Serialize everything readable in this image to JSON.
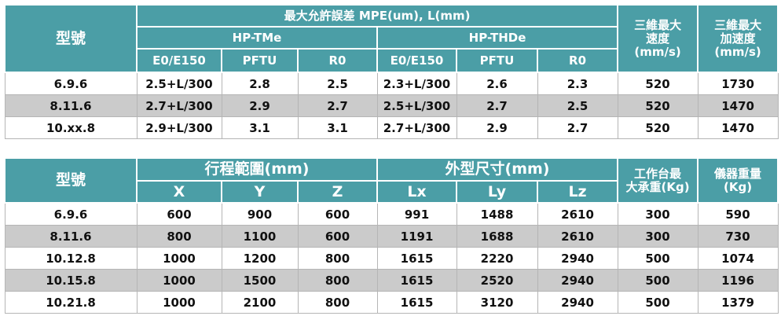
{
  "table1": {
    "header": {
      "model": "型號",
      "tolerance": "最大允許誤差  MPE(um), L(mm)",
      "groups": [
        "HP-TMe",
        "HP-THDe"
      ],
      "subcols": [
        "E0/E150",
        "PFTU",
        "R0",
        "E0/E150",
        "PFTU",
        "R0"
      ],
      "speed": [
        "三維最大",
        "速度",
        "(mm/s)"
      ],
      "accel": [
        "三維最大",
        "加速度",
        "(mm/s)"
      ]
    },
    "rows": [
      [
        "6.9.6",
        "2.5+L/300",
        "2.8",
        "2.5",
        "2.3+L/300",
        "2.6",
        "2.3",
        "520",
        "1730"
      ],
      [
        "8.11.6",
        "2.7+L/300",
        "2.9",
        "2.7",
        "2.5+L/300",
        "2.7",
        "2.5",
        "520",
        "1470"
      ],
      [
        "10.xx.8",
        "2.9+L/300",
        "3.1",
        "3.1",
        "2.7+L/300",
        "2.9",
        "2.7",
        "520",
        "1470"
      ]
    ]
  },
  "table2": {
    "header": {
      "model": "型號",
      "travel": "行程範圍(mm)",
      "dims": "外型尺寸(mm)",
      "subcols": [
        "X",
        "Y",
        "Z",
        "Lx",
        "Ly",
        "Lz"
      ],
      "load": [
        "工作台最",
        "大承重(Kg)"
      ],
      "weight": [
        "儀器重量",
        "(Kg)"
      ]
    },
    "rows": [
      [
        "6.9.6",
        "600",
        "900",
        "600",
        "991",
        "1488",
        "2610",
        "300",
        "590"
      ],
      [
        "8.11.6",
        "800",
        "1100",
        "600",
        "1191",
        "1688",
        "2610",
        "300",
        "730"
      ],
      [
        "10.12.8",
        "1000",
        "1200",
        "800",
        "1615",
        "2220",
        "2940",
        "500",
        "1074"
      ],
      [
        "10.15.8",
        "1000",
        "1500",
        "800",
        "1615",
        "2520",
        "2940",
        "500",
        "1196"
      ],
      [
        "10.21.8",
        "1000",
        "2100",
        "800",
        "1615",
        "3120",
        "2940",
        "500",
        "1379"
      ]
    ]
  }
}
